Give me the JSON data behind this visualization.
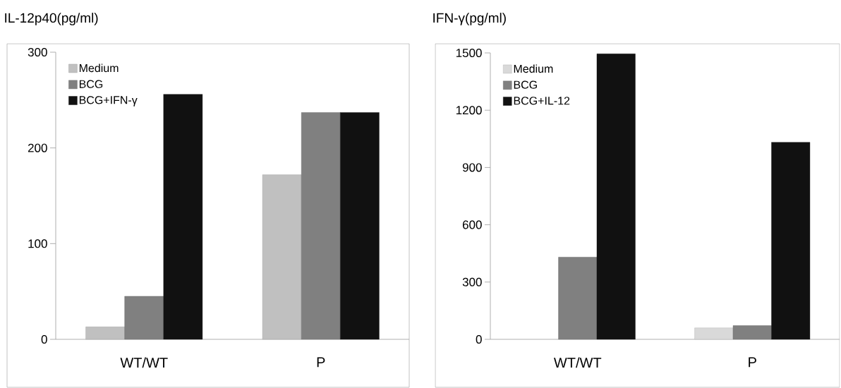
{
  "chart_data": [
    {
      "type": "bar",
      "title": "IL-12p40(pg/ml)",
      "categories": [
        "WT/WT",
        "P"
      ],
      "series": [
        {
          "name": "Medium",
          "color": "#c0c0c0",
          "values": [
            13,
            172
          ]
        },
        {
          "name": "BCG",
          "color": "#808080",
          "values": [
            45,
            237
          ]
        },
        {
          "name": "BCG+IFN-γ",
          "color": "#111111",
          "values": [
            256,
            237
          ]
        }
      ],
      "ylim": [
        0,
        300
      ],
      "yticks": [
        0,
        100,
        200,
        300
      ],
      "legend": "top left"
    },
    {
      "type": "bar",
      "title": "IFN-γ(pg/ml)",
      "categories": [
        "WT/WT",
        "P"
      ],
      "series": [
        {
          "name": "Medium",
          "color": "#d9d9d9",
          "values": [
            null,
            60
          ]
        },
        {
          "name": "BCG",
          "color": "#808080",
          "values": [
            430,
            72
          ]
        },
        {
          "name": "BCG+IL-12",
          "color": "#111111",
          "values": [
            1495,
            1032
          ]
        }
      ],
      "ylim": [
        0,
        1500
      ],
      "yticks": [
        0,
        300,
        600,
        900,
        1200,
        1500
      ],
      "legend": "top left"
    }
  ]
}
